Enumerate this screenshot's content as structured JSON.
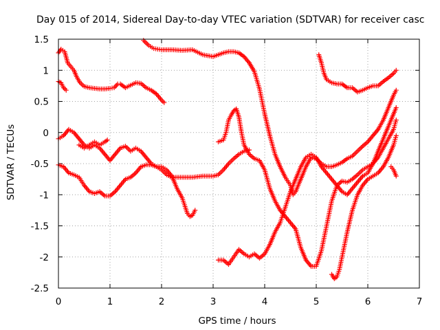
{
  "chart_data": {
    "type": "scatter",
    "title": "Day 015 of 2014, Sidereal Day-to-day VTEC variation (SDTVAR) for receiver casc",
    "xlabel": "GPS time / hours",
    "ylabel": "SDTVAR / TECUs",
    "xlim": [
      0,
      7
    ],
    "ylim": [
      -2.5,
      1.5
    ],
    "x_ticks": [
      "0",
      "1",
      "2",
      "3",
      "4",
      "5",
      "6",
      "7"
    ],
    "y_ticks": [
      "1.5",
      "1",
      "0.5",
      "0",
      "-0.5",
      "-1",
      "-1.5",
      "-2",
      "-2.5"
    ],
    "grid": true,
    "marker": "+",
    "color": "#ff0000",
    "series": [
      {
        "segments": [
          [
            [
              0,
              1.28
            ],
            [
              0.05,
              1.34
            ],
            [
              0.12,
              1.3
            ],
            [
              0.18,
              1.12
            ],
            [
              0.25,
              1.05
            ],
            [
              0.3,
              1.0
            ],
            [
              0.35,
              0.9
            ],
            [
              0.42,
              0.8
            ],
            [
              0.5,
              0.74
            ],
            [
              0.6,
              0.72
            ],
            [
              0.7,
              0.71
            ],
            [
              0.8,
              0.7
            ],
            [
              0.9,
              0.7
            ],
            [
              1.0,
              0.71
            ],
            [
              1.08,
              0.72
            ],
            [
              1.15,
              0.78
            ],
            [
              1.2,
              0.78
            ],
            [
              1.3,
              0.72
            ],
            [
              1.4,
              0.76
            ],
            [
              1.5,
              0.8
            ],
            [
              1.6,
              0.79
            ],
            [
              1.7,
              0.72
            ],
            [
              1.8,
              0.68
            ],
            [
              1.9,
              0.62
            ],
            [
              2.0,
              0.52
            ],
            [
              2.05,
              0.48
            ]
          ],
          [
            [
              0,
              0.82
            ],
            [
              0.05,
              0.8
            ],
            [
              0.1,
              0.72
            ],
            [
              0.15,
              0.68
            ]
          ]
        ]
      },
      {
        "segments": [
          [
            [
              0,
              -0.1
            ],
            [
              0.1,
              -0.05
            ],
            [
              0.2,
              0.05
            ],
            [
              0.3,
              0.0
            ],
            [
              0.4,
              -0.1
            ],
            [
              0.5,
              -0.2
            ],
            [
              0.6,
              -0.25
            ],
            [
              0.7,
              -0.2
            ],
            [
              0.8,
              -0.25
            ],
            [
              0.9,
              -0.35
            ],
            [
              1.0,
              -0.45
            ],
            [
              1.1,
              -0.35
            ],
            [
              1.2,
              -0.25
            ],
            [
              1.3,
              -0.22
            ],
            [
              1.4,
              -0.3
            ],
            [
              1.5,
              -0.25
            ],
            [
              1.6,
              -0.3
            ],
            [
              1.7,
              -0.4
            ],
            [
              1.8,
              -0.5
            ],
            [
              1.9,
              -0.55
            ],
            [
              2.0,
              -0.55
            ],
            [
              2.1,
              -0.6
            ],
            [
              2.2,
              -0.7
            ],
            [
              2.3,
              -0.9
            ],
            [
              2.4,
              -1.05
            ],
            [
              2.5,
              -1.3
            ],
            [
              2.55,
              -1.35
            ],
            [
              2.6,
              -1.33
            ],
            [
              2.65,
              -1.25
            ]
          ],
          [
            [
              0.4,
              -0.2
            ],
            [
              0.5,
              -0.25
            ],
            [
              0.6,
              -0.2
            ],
            [
              0.7,
              -0.15
            ],
            [
              0.8,
              -0.2
            ],
            [
              0.9,
              -0.15
            ],
            [
              0.95,
              -0.12
            ]
          ]
        ]
      },
      {
        "segments": [
          [
            [
              0,
              -0.52
            ],
            [
              0.1,
              -0.55
            ],
            [
              0.2,
              -0.65
            ],
            [
              0.3,
              -0.68
            ],
            [
              0.4,
              -0.72
            ],
            [
              0.5,
              -0.85
            ],
            [
              0.6,
              -0.95
            ],
            [
              0.7,
              -0.98
            ],
            [
              0.8,
              -0.95
            ],
            [
              0.9,
              -1.02
            ],
            [
              1.0,
              -1.02
            ],
            [
              1.1,
              -0.95
            ],
            [
              1.2,
              -0.85
            ],
            [
              1.3,
              -0.75
            ],
            [
              1.4,
              -0.72
            ],
            [
              1.5,
              -0.65
            ],
            [
              1.6,
              -0.55
            ],
            [
              1.7,
              -0.52
            ],
            [
              1.8,
              -0.52
            ],
            [
              1.9,
              -0.55
            ],
            [
              2.0,
              -0.6
            ],
            [
              2.1,
              -0.68
            ],
            [
              2.2,
              -0.72
            ],
            [
              2.4,
              -0.72
            ],
            [
              2.6,
              -0.72
            ],
            [
              2.8,
              -0.7
            ],
            [
              3.0,
              -0.7
            ],
            [
              3.1,
              -0.68
            ],
            [
              3.2,
              -0.6
            ],
            [
              3.3,
              -0.5
            ],
            [
              3.4,
              -0.42
            ],
            [
              3.5,
              -0.35
            ],
            [
              3.6,
              -0.3
            ],
            [
              3.7,
              -0.28
            ]
          ]
        ]
      },
      {
        "segments": [
          [
            [
              1.65,
              1.48
            ],
            [
              1.75,
              1.4
            ],
            [
              1.85,
              1.35
            ],
            [
              2.0,
              1.33
            ],
            [
              2.2,
              1.33
            ],
            [
              2.4,
              1.32
            ],
            [
              2.6,
              1.33
            ],
            [
              2.8,
              1.25
            ],
            [
              3.0,
              1.22
            ],
            [
              3.1,
              1.25
            ],
            [
              3.2,
              1.28
            ],
            [
              3.3,
              1.3
            ],
            [
              3.4,
              1.3
            ],
            [
              3.5,
              1.28
            ],
            [
              3.6,
              1.22
            ],
            [
              3.7,
              1.12
            ],
            [
              3.8,
              0.98
            ],
            [
              3.9,
              0.7
            ],
            [
              4.0,
              0.3
            ],
            [
              4.1,
              -0.05
            ],
            [
              4.2,
              -0.35
            ],
            [
              4.3,
              -0.55
            ],
            [
              4.4,
              -0.72
            ],
            [
              4.5,
              -0.85
            ],
            [
              4.55,
              -1.0
            ],
            [
              4.6,
              -0.95
            ],
            [
              4.7,
              -0.75
            ],
            [
              4.8,
              -0.55
            ],
            [
              4.9,
              -0.4
            ],
            [
              5.0,
              -0.42
            ],
            [
              5.1,
              -0.5
            ],
            [
              5.2,
              -0.55
            ],
            [
              5.3,
              -0.55
            ],
            [
              5.4,
              -0.52
            ],
            [
              5.5,
              -0.48
            ],
            [
              5.6,
              -0.42
            ],
            [
              5.7,
              -0.38
            ],
            [
              5.8,
              -0.3
            ],
            [
              5.9,
              -0.22
            ],
            [
              6.0,
              -0.15
            ],
            [
              6.1,
              -0.05
            ],
            [
              6.2,
              0.05
            ],
            [
              6.3,
              0.2
            ],
            [
              6.4,
              0.4
            ],
            [
              6.5,
              0.6
            ],
            [
              6.55,
              0.68
            ]
          ]
        ]
      },
      {
        "segments": [
          [
            [
              3.1,
              -0.15
            ],
            [
              3.2,
              -0.12
            ],
            [
              3.25,
              0.0
            ],
            [
              3.3,
              0.2
            ],
            [
              3.35,
              0.28
            ],
            [
              3.4,
              0.35
            ],
            [
              3.45,
              0.38
            ],
            [
              3.5,
              0.25
            ],
            [
              3.55,
              0.0
            ],
            [
              3.6,
              -0.2
            ],
            [
              3.7,
              -0.35
            ],
            [
              3.8,
              -0.42
            ],
            [
              3.9,
              -0.45
            ],
            [
              4.0,
              -0.6
            ],
            [
              4.1,
              -0.9
            ],
            [
              4.2,
              -1.1
            ],
            [
              4.3,
              -1.25
            ],
            [
              4.4,
              -1.35
            ],
            [
              4.5,
              -1.45
            ],
            [
              4.6,
              -1.55
            ],
            [
              4.7,
              -1.85
            ],
            [
              4.8,
              -2.05
            ],
            [
              4.9,
              -2.15
            ],
            [
              5.0,
              -2.15
            ],
            [
              5.1,
              -1.9
            ],
            [
              5.2,
              -1.5
            ],
            [
              5.3,
              -1.1
            ],
            [
              5.4,
              -0.85
            ],
            [
              5.5,
              -0.78
            ],
            [
              5.6,
              -0.8
            ],
            [
              5.7,
              -0.75
            ],
            [
              5.8,
              -0.68
            ],
            [
              5.9,
              -0.6
            ],
            [
              6.0,
              -0.55
            ],
            [
              6.1,
              -0.5
            ],
            [
              6.2,
              -0.4
            ],
            [
              6.3,
              -0.25
            ],
            [
              6.4,
              -0.1
            ],
            [
              6.5,
              0.05
            ],
            [
              6.55,
              0.2
            ]
          ]
        ]
      },
      {
        "segments": [
          [
            [
              3.1,
              -2.05
            ],
            [
              3.2,
              -2.05
            ],
            [
              3.3,
              -2.12
            ],
            [
              3.4,
              -2.0
            ],
            [
              3.5,
              -1.88
            ],
            [
              3.6,
              -1.95
            ],
            [
              3.7,
              -2.0
            ],
            [
              3.8,
              -1.95
            ],
            [
              3.9,
              -2.02
            ],
            [
              4.0,
              -1.95
            ],
            [
              4.1,
              -1.8
            ],
            [
              4.2,
              -1.6
            ],
            [
              4.3,
              -1.45
            ],
            [
              4.4,
              -1.2
            ],
            [
              4.5,
              -0.95
            ],
            [
              4.6,
              -0.75
            ],
            [
              4.7,
              -0.55
            ],
            [
              4.8,
              -0.4
            ],
            [
              4.9,
              -0.35
            ],
            [
              5.0,
              -0.4
            ],
            [
              5.1,
              -0.55
            ],
            [
              5.2,
              -0.65
            ],
            [
              5.3,
              -0.75
            ],
            [
              5.4,
              -0.85
            ],
            [
              5.5,
              -0.95
            ],
            [
              5.6,
              -1.0
            ],
            [
              5.7,
              -0.9
            ],
            [
              5.8,
              -0.8
            ],
            [
              5.9,
              -0.7
            ],
            [
              6.0,
              -0.65
            ],
            [
              6.1,
              -0.5
            ],
            [
              6.2,
              -0.3
            ],
            [
              6.3,
              -0.1
            ],
            [
              6.4,
              0.1
            ],
            [
              6.5,
              0.3
            ],
            [
              6.55,
              0.4
            ]
          ]
        ]
      },
      {
        "segments": [
          [
            [
              5.3,
              -2.28
            ],
            [
              5.35,
              -2.35
            ],
            [
              5.4,
              -2.32
            ],
            [
              5.45,
              -2.2
            ],
            [
              5.5,
              -2.0
            ],
            [
              5.6,
              -1.6
            ],
            [
              5.7,
              -1.25
            ],
            [
              5.8,
              -1.0
            ],
            [
              5.9,
              -0.85
            ],
            [
              6.0,
              -0.75
            ],
            [
              6.1,
              -0.7
            ],
            [
              6.2,
              -0.65
            ],
            [
              6.3,
              -0.55
            ],
            [
              6.4,
              -0.4
            ],
            [
              6.45,
              -0.3
            ],
            [
              6.5,
              -0.2
            ],
            [
              6.55,
              -0.05
            ]
          ],
          [
            [
              6.45,
              -0.55
            ],
            [
              6.5,
              -0.6
            ],
            [
              6.55,
              -0.7
            ]
          ]
        ]
      },
      {
        "segments": [
          [
            [
              5.05,
              1.25
            ],
            [
              5.1,
              1.12
            ],
            [
              5.15,
              0.95
            ],
            [
              5.2,
              0.85
            ],
            [
              5.3,
              0.8
            ],
            [
              5.4,
              0.78
            ],
            [
              5.5,
              0.78
            ],
            [
              5.6,
              0.72
            ],
            [
              5.7,
              0.72
            ],
            [
              5.8,
              0.65
            ],
            [
              5.9,
              0.68
            ],
            [
              6.0,
              0.72
            ],
            [
              6.1,
              0.75
            ],
            [
              6.2,
              0.75
            ],
            [
              6.3,
              0.82
            ],
            [
              6.4,
              0.88
            ],
            [
              6.5,
              0.95
            ],
            [
              6.55,
              1.0
            ]
          ]
        ]
      }
    ]
  }
}
